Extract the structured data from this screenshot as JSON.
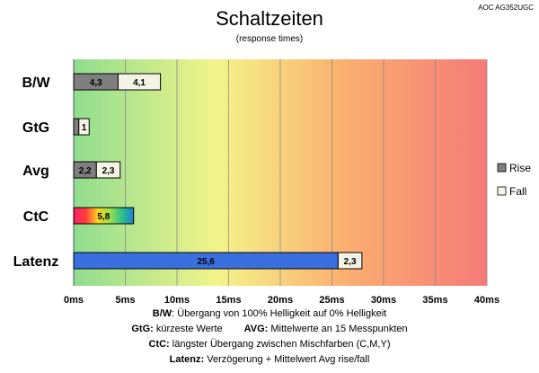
{
  "corner_label": "AOC AG352UGC",
  "chart_data": {
    "type": "bar",
    "orientation": "horizontal",
    "stacked": true,
    "title": "Schaltzeiten",
    "subtitle": "(response times)",
    "categories": [
      "B/W",
      "GtG",
      "Avg",
      "CtC",
      "Latenz"
    ],
    "xlim": [
      0,
      40
    ],
    "tick_labels": [
      "0ms",
      "5ms",
      "10ms",
      "15ms",
      "20ms",
      "25ms",
      "30ms",
      "35ms",
      "40ms"
    ],
    "grid": true,
    "background_gradient": [
      "#8fdd8f",
      "#f4f48a",
      "#fbb070",
      "#f57a78"
    ],
    "series": [
      {
        "name": "Rise",
        "color": "#7f7f7f",
        "values": [
          4.3,
          0.5,
          2.2,
          null,
          null
        ],
        "labels": [
          "4,3",
          "",
          "2,2",
          "",
          ""
        ]
      },
      {
        "name": "Fall",
        "color": "#f4f4e6",
        "values": [
          4.1,
          1.0,
          2.3,
          null,
          2.3
        ],
        "labels": [
          "4,1",
          "1",
          "2,3",
          "",
          "2,3"
        ]
      }
    ],
    "special_bars": [
      {
        "category": "CtC",
        "value": 5.8,
        "label": "5,8",
        "fill": "rainbow"
      },
      {
        "category": "Latenz",
        "value": 25.6,
        "label": "25,6",
        "fill": "#3a6fe0"
      }
    ],
    "legend": {
      "position": "right"
    }
  },
  "footer": {
    "line1_term": "B/W",
    "line1_text": ":  Übergang von 100% Helligkeit auf 0% Helligkeit",
    "line2_term_a": "GtG:",
    "line2_text_a": " kürzeste  Werte",
    "line2_term_b": "AVG:",
    "line2_text_b": " Mittelwerte  an 15 Messpunkten",
    "line3_term": "CtC:",
    "line3_text": " längster Übergang  zwischen Mischfarben (C,M,Y)",
    "line4_term": "Latenz:",
    "line4_text": " Verzögerung  + Mittelwert  Avg rise/fall"
  }
}
